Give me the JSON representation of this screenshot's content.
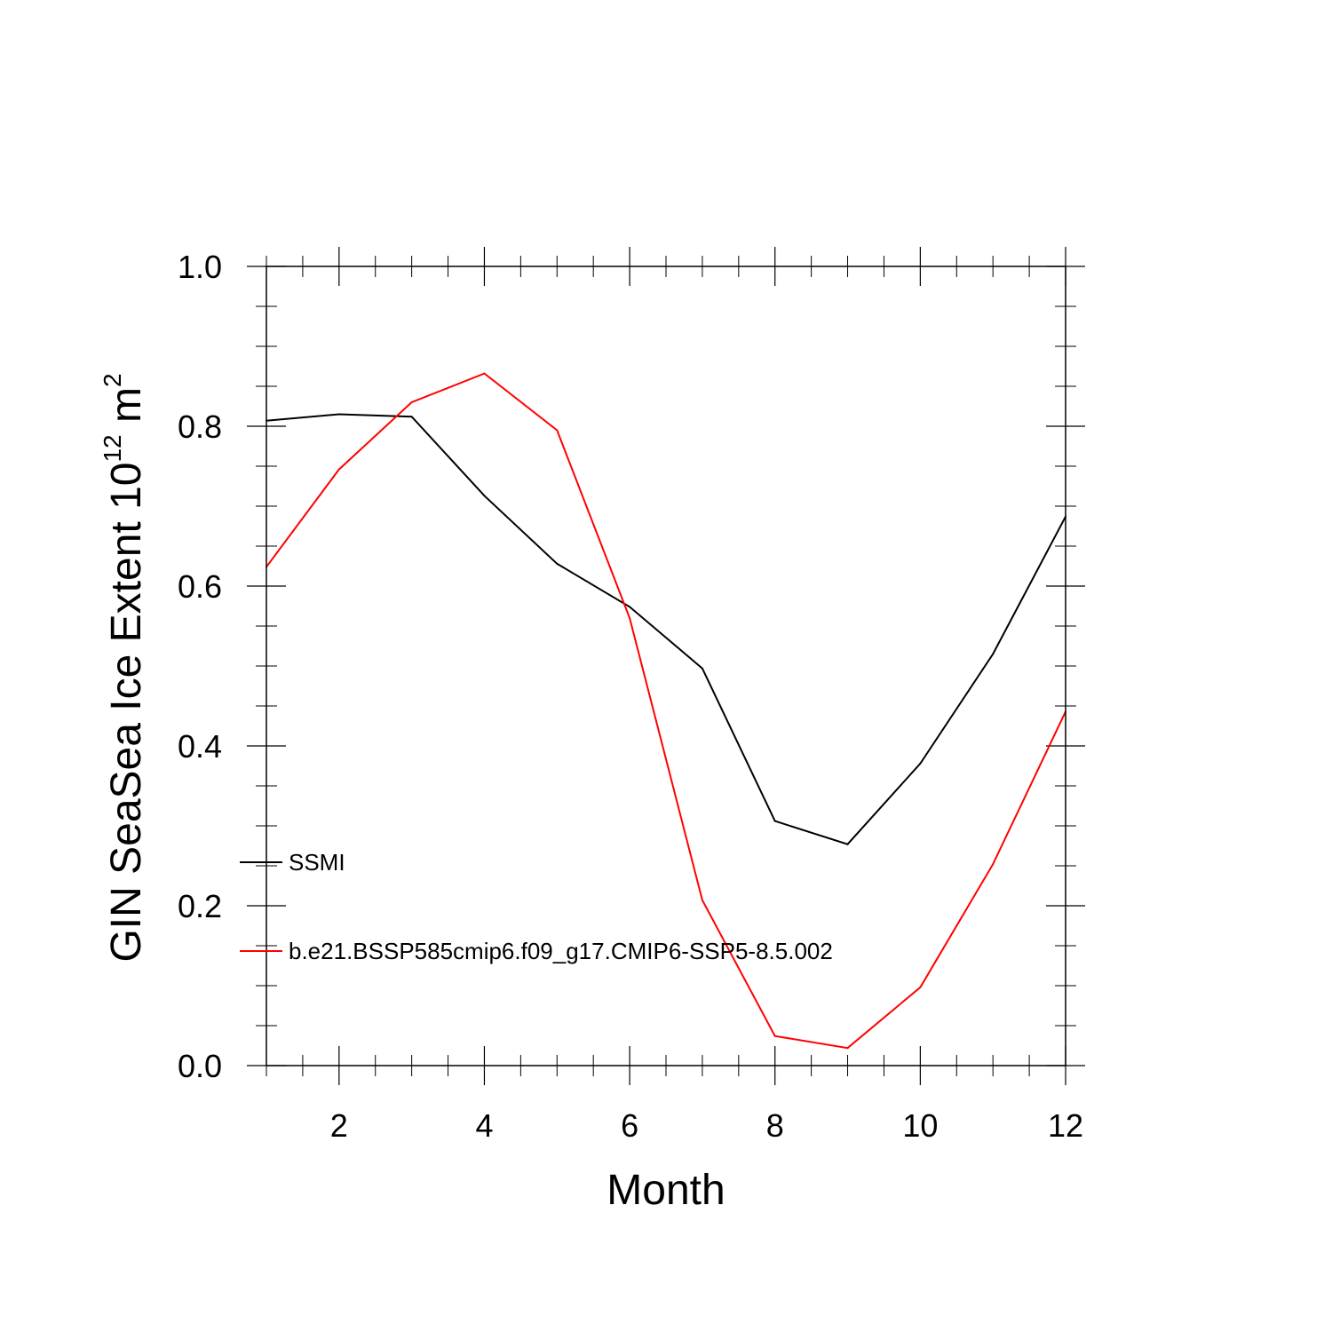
{
  "chart_data": {
    "type": "line",
    "xlabel": "Month",
    "ylabel": {
      "main": "GIN SeaSea Ice Extent 10",
      "exp1": "12",
      "mid": " m",
      "exp2": "2"
    },
    "xlim": [
      1,
      12
    ],
    "ylim": [
      0,
      1
    ],
    "x_ticks": [
      2,
      4,
      6,
      8,
      10,
      12
    ],
    "x_tick_labels": [
      "2",
      "4",
      "6",
      "8",
      "10",
      "12"
    ],
    "y_ticks": [
      0,
      0.2,
      0.4,
      0.6,
      0.8,
      1.0
    ],
    "y_tick_labels": [
      "0.0",
      "0.2",
      "0.4",
      "0.6",
      "0.8",
      "1.0"
    ],
    "x": [
      1,
      2,
      3,
      4,
      5,
      6,
      7,
      8,
      9,
      10,
      11,
      12
    ],
    "series": [
      {
        "name": "SSMI",
        "color": "#000000",
        "values": [
          0.807,
          0.815,
          0.812,
          0.713,
          0.628,
          0.574,
          0.497,
          0.306,
          0.277,
          0.378,
          0.515,
          0.687
        ]
      },
      {
        "name": "b.e21.BSSP585cmip6.f09_g17.CMIP6-SSP5-8.5.002",
        "color": "#ff0000",
        "values": [
          0.624,
          0.746,
          0.83,
          0.866,
          0.795,
          0.56,
          0.207,
          0.037,
          0.022,
          0.098,
          0.252,
          0.443
        ]
      }
    ],
    "legend_position": "inside-lower-left",
    "grid": false
  }
}
